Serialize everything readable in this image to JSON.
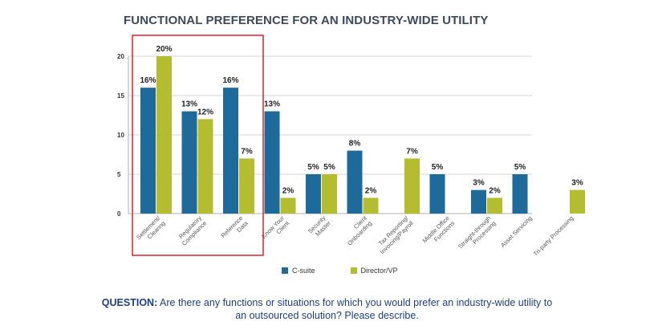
{
  "chart_data": {
    "type": "bar",
    "title": "FUNCTIONAL PREFERENCE FOR AN INDUSTRY-WIDE UTILITY",
    "xlabel": "",
    "ylabel": "",
    "ylim": [
      0,
      20
    ],
    "yticks": [
      "0",
      "5",
      "10",
      "15",
      "20"
    ],
    "grid": true,
    "legend_position": "bottom",
    "categories": [
      "Settlement/\nClearing",
      "Regulatory\nCompliance",
      "Reference\nData",
      "Know Your\nClient",
      "Security\nMaster",
      "Client\nOnboarding",
      "Tax Reporting/\nInvoicing/Payroll",
      "Middle Office\nFunctions",
      "Straight-through\nProcessing",
      "Asset Servicing",
      "Tri-party Processing"
    ],
    "series": [
      {
        "name": "C-suite",
        "color": "#1d6a9b",
        "values": [
          16,
          13,
          16,
          13,
          5,
          8,
          null,
          5,
          3,
          5,
          null
        ],
        "labels": [
          "16%",
          "13%",
          "16%",
          "13%",
          "5%",
          "8%",
          "",
          "5%",
          "3%",
          "5%",
          ""
        ]
      },
      {
        "name": "Director/VP",
        "color": "#b4bd30",
        "values": [
          20,
          12,
          7,
          2,
          5,
          2,
          7,
          null,
          2,
          null,
          3
        ],
        "labels": [
          "20%",
          "12%",
          "7%",
          "2%",
          "5%",
          "2%",
          "7%",
          "",
          "2%",
          "",
          "3%"
        ]
      }
    ],
    "highlight_color": "#e0202a"
  },
  "question": {
    "prefix": "QUESTION:",
    "text": "Are there any functions or situations for which you would prefer an industry-wide utility to an outsourced solution? Please describe."
  }
}
